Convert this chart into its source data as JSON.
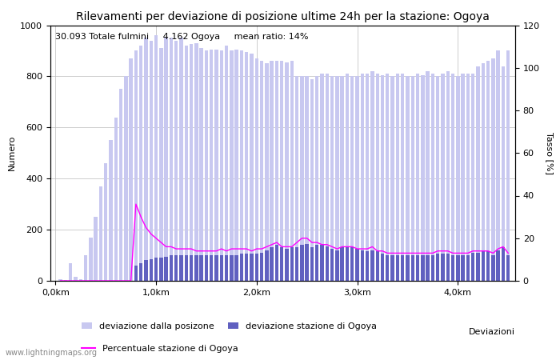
{
  "title": "Rilevamenti per deviazione di posizione ultime 24h per la stazione: Ogoya",
  "ylabel_left": "Numero",
  "ylabel_right": "Tasso [%]",
  "xlabel": "Deviazioni",
  "annotation": "30.093 Totale fulmini     4.162 Ogoya     mean ratio: 14%",
  "watermark": "www.lightningmaps.org",
  "bar_light_color": "#c8c8f0",
  "bar_dark_color": "#6060c0",
  "line_color": "#ff00ff",
  "ylim_left": [
    0,
    1000
  ],
  "ylim_right": [
    0,
    120
  ],
  "bar_positions": [
    0.05,
    0.1,
    0.15,
    0.2,
    0.25,
    0.3,
    0.35,
    0.4,
    0.45,
    0.5,
    0.55,
    0.6,
    0.65,
    0.7,
    0.75,
    0.8,
    0.85,
    0.9,
    0.95,
    1.0,
    1.05,
    1.1,
    1.15,
    1.2,
    1.25,
    1.3,
    1.35,
    1.4,
    1.45,
    1.5,
    1.55,
    1.6,
    1.65,
    1.7,
    1.75,
    1.8,
    1.85,
    1.9,
    1.95,
    2.0,
    2.05,
    2.1,
    2.15,
    2.2,
    2.25,
    2.3,
    2.35,
    2.4,
    2.45,
    2.5,
    2.55,
    2.6,
    2.65,
    2.7,
    2.75,
    2.8,
    2.85,
    2.9,
    2.95,
    3.0,
    3.05,
    3.1,
    3.15,
    3.2,
    3.25,
    3.3,
    3.35,
    3.4,
    3.45,
    3.5,
    3.55,
    3.6,
    3.65,
    3.7,
    3.75,
    3.8,
    3.85,
    3.9,
    3.95,
    4.0,
    4.05,
    4.1,
    4.15,
    4.2,
    4.25,
    4.3,
    4.35,
    4.4,
    4.45,
    4.5
  ],
  "light_bars": [
    5,
    2,
    70,
    15,
    5,
    100,
    170,
    250,
    370,
    460,
    550,
    640,
    750,
    800,
    870,
    900,
    920,
    950,
    940,
    960,
    910,
    950,
    950,
    940,
    950,
    920,
    925,
    930,
    910,
    900,
    905,
    905,
    900,
    920,
    900,
    905,
    900,
    895,
    890,
    870,
    860,
    850,
    860,
    860,
    860,
    855,
    860,
    800,
    800,
    800,
    790,
    800,
    810,
    810,
    800,
    800,
    800,
    810,
    800,
    800,
    810,
    810,
    820,
    810,
    805,
    810,
    800,
    810,
    810,
    800,
    800,
    810,
    805,
    820,
    810,
    800,
    810,
    820,
    810,
    800,
    810,
    810,
    810,
    840,
    850,
    860,
    870,
    900,
    840,
    900
  ],
  "dark_bars": [
    0,
    0,
    0,
    0,
    0,
    0,
    0,
    0,
    0,
    0,
    0,
    0,
    0,
    0,
    0,
    60,
    70,
    80,
    85,
    90,
    90,
    95,
    100,
    100,
    100,
    100,
    100,
    100,
    100,
    100,
    100,
    100,
    100,
    100,
    100,
    100,
    105,
    105,
    105,
    105,
    110,
    120,
    130,
    140,
    130,
    125,
    130,
    130,
    140,
    145,
    130,
    140,
    140,
    135,
    125,
    120,
    130,
    130,
    130,
    125,
    120,
    115,
    120,
    115,
    105,
    100,
    100,
    100,
    100,
    100,
    100,
    100,
    100,
    100,
    100,
    105,
    105,
    105,
    100,
    100,
    100,
    100,
    110,
    110,
    115,
    115,
    100,
    120,
    130,
    100
  ],
  "ratio_line": [
    0,
    0,
    0,
    0,
    0,
    0,
    0,
    0,
    0,
    0,
    0,
    0,
    0,
    0,
    0,
    36,
    30,
    25,
    22,
    20,
    18,
    16,
    16,
    15,
    15,
    15,
    15,
    14,
    14,
    14,
    14,
    14,
    15,
    14,
    15,
    15,
    15,
    15,
    14,
    15,
    15,
    16,
    17,
    18,
    16,
    16,
    16,
    18,
    20,
    20,
    18,
    18,
    17,
    17,
    16,
    15,
    16,
    16,
    16,
    15,
    15,
    15,
    16,
    14,
    14,
    13,
    13,
    13,
    13,
    13,
    13,
    13,
    13,
    13,
    13,
    14,
    14,
    14,
    13,
    13,
    13,
    13,
    14,
    14,
    14,
    14,
    13,
    15,
    16,
    13
  ],
  "xtick_positions": [
    0.0,
    1.0,
    2.0,
    3.0,
    4.0
  ],
  "xtick_labels": [
    "0,0km",
    "1,0km",
    "2,0km",
    "3,0km",
    "4,0km"
  ],
  "xlim": [
    -0.05,
    4.57
  ],
  "bar_width": 0.035,
  "grid_color": "#bbbbbb",
  "bg_color": "#ffffff",
  "title_fontsize": 10,
  "label_fontsize": 8,
  "tick_fontsize": 8,
  "annotation_fontsize": 8
}
